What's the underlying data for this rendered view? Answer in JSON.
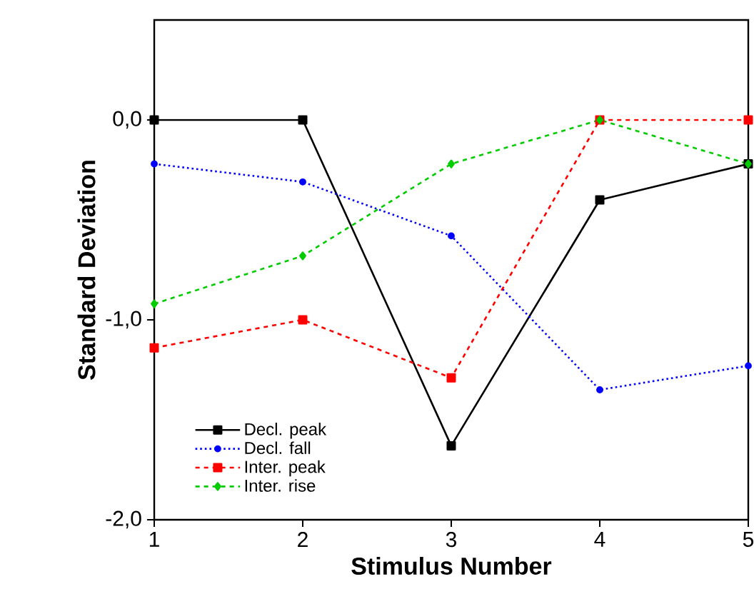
{
  "chart_data": {
    "type": "line",
    "xlabel": "Stimulus  Number",
    "ylabel": "Standard  Deviation",
    "x": [
      1,
      2,
      3,
      4,
      5
    ],
    "series": [
      {
        "name": "Decl. peak",
        "color": "#000000",
        "marker": "square",
        "line_style": "solid",
        "values": [
          0,
          0,
          -1.63,
          -0.4,
          -0.22
        ]
      },
      {
        "name": "Decl. fall",
        "color": "#0000ff",
        "marker": "circle",
        "line_style": "dotted",
        "values": [
          -0.22,
          -0.31,
          -0.58,
          -1.35,
          -1.23
        ]
      },
      {
        "name": "Inter. peak",
        "color": "#ff0000",
        "marker": "square",
        "line_style": "dashed",
        "values": [
          -1.14,
          -1.0,
          -1.29,
          0,
          0
        ]
      },
      {
        "name": "Inter. rise",
        "color": "#00cc00",
        "marker": "diamond",
        "line_style": "dashed",
        "values": [
          -0.92,
          -0.68,
          -0.22,
          0,
          -0.22
        ]
      }
    ],
    "xlim": [
      1,
      5
    ],
    "ylim": [
      -2,
      0.5
    ],
    "xticks": [
      1,
      2,
      3,
      4,
      5
    ],
    "yticks": [
      {
        "value": -2,
        "label": "-2,0"
      },
      {
        "value": -1,
        "label": "-1,0"
      },
      {
        "value": 0,
        "label": "0,0"
      }
    ],
    "grid": false,
    "legend": "bottom left"
  }
}
